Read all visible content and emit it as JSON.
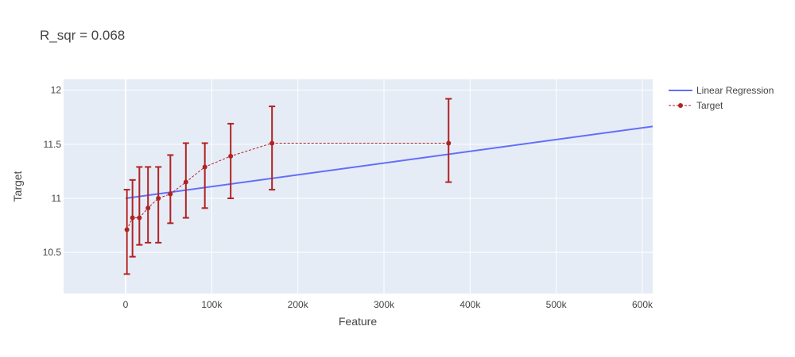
{
  "chart_data": {
    "type": "scatter",
    "title": "R_sqr = 0.068",
    "xlabel": "Feature",
    "ylabel": "Target",
    "xlim": [
      -72000,
      612000
    ],
    "ylim": [
      10.12,
      12.1
    ],
    "x_ticks": [
      0,
      100000,
      200000,
      300000,
      400000,
      500000,
      600000
    ],
    "x_tick_labels": [
      "0",
      "100k",
      "200k",
      "300k",
      "400k",
      "500k",
      "600k"
    ],
    "y_ticks": [
      10.5,
      11,
      11.5,
      12
    ],
    "y_tick_labels": [
      "10.5",
      "11",
      "11.5",
      "12"
    ],
    "grid": true,
    "legend_position": "top-right",
    "colors": {
      "plot_bg": "#e5ecf6",
      "grid": "#ffffff",
      "regression": "#636efa",
      "target": "#b22222"
    },
    "series": [
      {
        "name": "Linear Regression",
        "type": "line",
        "x": [
          0,
          612000
        ],
        "y": [
          11.0,
          11.665
        ]
      },
      {
        "name": "Target",
        "type": "line+markers",
        "x": [
          1500,
          8000,
          16000,
          26000,
          38000,
          52000,
          70000,
          92000,
          122000,
          170000,
          375000
        ],
        "y": [
          10.71,
          10.82,
          10.82,
          10.91,
          11.0,
          11.04,
          11.15,
          11.29,
          11.39,
          11.51,
          11.51
        ],
        "err_low": [
          10.3,
          10.46,
          10.57,
          10.59,
          10.59,
          10.77,
          10.82,
          10.91,
          11.0,
          11.08,
          11.15
        ],
        "err_high": [
          11.08,
          11.17,
          11.29,
          11.29,
          11.29,
          11.4,
          11.51,
          11.51,
          11.69,
          11.85,
          11.92
        ]
      }
    ]
  }
}
